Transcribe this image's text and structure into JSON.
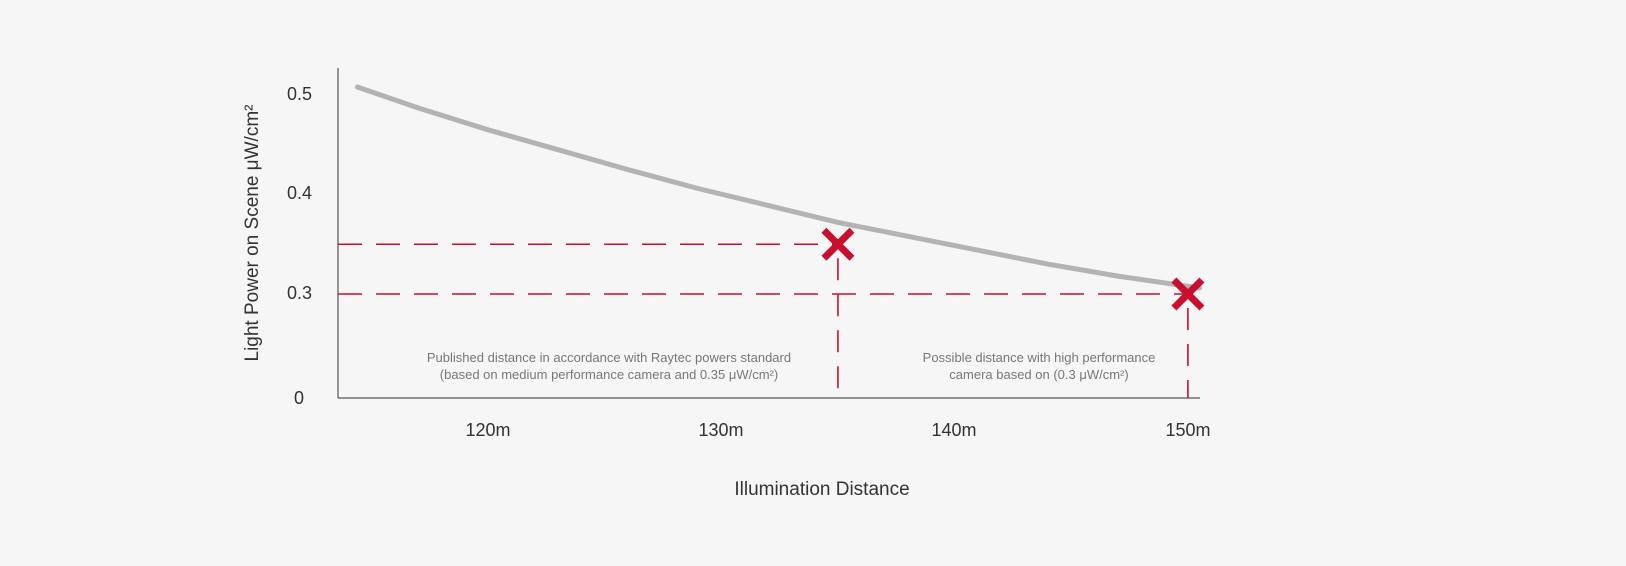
{
  "chart_data": {
    "type": "line",
    "title": "",
    "xlabel": "Illumination Distance",
    "ylabel": "Light Power on Scene μW/cm²",
    "x_ticks": [
      "120m",
      "130m",
      "140m",
      "150m"
    ],
    "y_ticks": [
      "0",
      "0.3",
      "0.4",
      "0.5"
    ],
    "x_tick_values": [
      120,
      130,
      140,
      150
    ],
    "y_tick_values": [
      0,
      0.3,
      0.4,
      0.5
    ],
    "x_range": [
      113.6,
      150.6
    ],
    "y_axis_break": "between 0 and 0.3",
    "grid": false,
    "series": [
      {
        "x": [
          114.4,
          117,
          120,
          123,
          126,
          129,
          132,
          135,
          138,
          141,
          144,
          147,
          150.5
        ],
        "y": [
          0.508,
          0.487,
          0.465,
          0.445,
          0.425,
          0.406,
          0.389,
          0.372,
          0.358,
          0.344,
          0.33,
          0.318,
          0.306
        ],
        "color": "#b3b3b3"
      }
    ],
    "markers": [
      {
        "x": 135,
        "y": 0.35,
        "color": "#c8102e"
      },
      {
        "x": 150,
        "y": 0.3,
        "color": "#c8102e"
      }
    ],
    "reference_lines_color": "#c8102e",
    "annotations": [
      {
        "lines": [
          "Published distance in accordance with Raytec powers standard",
          "(based on medium performance camera and 0.35 μW/cm²)"
        ]
      },
      {
        "lines": [
          "Possible distance with high performance",
          "camera based on (0.3 μW/cm²)"
        ]
      }
    ]
  }
}
